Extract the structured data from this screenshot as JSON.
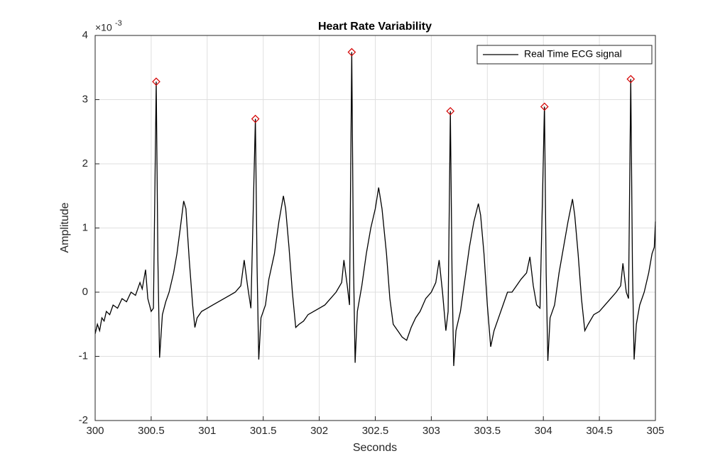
{
  "chart_data": {
    "type": "line",
    "title": "Heart Rate Variability",
    "xlabel": "Seconds",
    "ylabel": "Amplitude",
    "y_scale_base": "×10",
    "y_scale_power": "-3",
    "xlim": [
      300,
      305
    ],
    "xticks": [
      300,
      300.5,
      301,
      301.5,
      302,
      302.5,
      303,
      303.5,
      304,
      304.5,
      305
    ],
    "ylim": [
      -2,
      4
    ],
    "yticks": [
      -2,
      -1,
      0,
      1,
      2,
      3,
      4
    ],
    "grid": true,
    "legend": "northeast",
    "x": [
      300.0,
      300.02,
      300.04,
      300.06,
      300.08,
      300.1,
      300.13,
      300.16,
      300.2,
      300.24,
      300.28,
      300.32,
      300.36,
      300.4,
      300.42,
      300.45,
      300.47,
      300.5,
      300.52,
      300.545,
      300.56,
      300.575,
      300.6,
      300.63,
      300.66,
      300.7,
      300.73,
      300.76,
      300.79,
      300.81,
      300.84,
      300.87,
      300.89,
      300.91,
      300.95,
      301.0,
      301.05,
      301.1,
      301.15,
      301.2,
      301.25,
      301.3,
      301.33,
      301.36,
      301.39,
      301.43,
      301.445,
      301.46,
      301.48,
      301.52,
      301.55,
      301.6,
      301.64,
      301.68,
      301.7,
      301.73,
      301.76,
      301.79,
      301.82,
      301.86,
      301.9,
      301.95,
      302.0,
      302.05,
      302.1,
      302.15,
      302.2,
      302.22,
      302.25,
      302.27,
      302.29,
      302.305,
      302.32,
      302.34,
      302.38,
      302.42,
      302.46,
      302.5,
      302.53,
      302.56,
      302.6,
      302.63,
      302.66,
      302.7,
      302.74,
      302.78,
      302.82,
      302.86,
      302.9,
      302.95,
      303.0,
      303.04,
      303.07,
      303.1,
      303.13,
      303.15,
      303.17,
      303.185,
      303.2,
      303.22,
      303.26,
      303.3,
      303.34,
      303.38,
      303.42,
      303.44,
      303.47,
      303.5,
      303.53,
      303.56,
      303.6,
      303.64,
      303.68,
      303.72,
      303.76,
      303.8,
      303.85,
      303.88,
      303.91,
      303.94,
      303.97,
      304.01,
      304.025,
      304.04,
      304.06,
      304.1,
      304.14,
      304.18,
      304.22,
      304.26,
      304.28,
      304.31,
      304.34,
      304.37,
      304.4,
      304.45,
      304.5,
      304.55,
      304.6,
      304.65,
      304.69,
      304.71,
      304.74,
      304.76,
      304.78,
      304.795,
      304.81,
      304.83,
      304.86,
      304.9,
      304.94,
      304.97,
      304.99,
      305.0
    ],
    "series": [
      {
        "name": "Real Time ECG signal",
        "color": "#000000",
        "values": [
          -0.65,
          -0.5,
          -0.6,
          -0.4,
          -0.45,
          -0.3,
          -0.35,
          -0.2,
          -0.25,
          -0.1,
          -0.15,
          0.0,
          -0.05,
          0.15,
          0.05,
          0.35,
          -0.1,
          -0.3,
          -0.25,
          3.28,
          0.5,
          -1.02,
          -0.35,
          -0.15,
          0.0,
          0.3,
          0.6,
          1.0,
          1.42,
          1.3,
          0.5,
          -0.2,
          -0.55,
          -0.4,
          -0.3,
          -0.25,
          -0.2,
          -0.15,
          -0.1,
          -0.05,
          0.0,
          0.1,
          0.5,
          0.1,
          -0.25,
          2.7,
          0.4,
          -1.05,
          -0.4,
          -0.2,
          0.2,
          0.6,
          1.1,
          1.5,
          1.3,
          0.7,
          0.0,
          -0.55,
          -0.5,
          -0.45,
          -0.35,
          -0.3,
          -0.25,
          -0.2,
          -0.1,
          0.0,
          0.15,
          0.5,
          0.1,
          -0.2,
          3.74,
          0.5,
          -1.1,
          -0.3,
          0.1,
          0.6,
          1.0,
          1.3,
          1.63,
          1.3,
          0.6,
          -0.1,
          -0.5,
          -0.6,
          -0.7,
          -0.75,
          -0.55,
          -0.4,
          -0.3,
          -0.1,
          0.0,
          0.15,
          0.5,
          0.0,
          -0.6,
          -0.3,
          2.82,
          0.3,
          -1.15,
          -0.6,
          -0.3,
          0.2,
          0.7,
          1.1,
          1.38,
          1.2,
          0.6,
          -0.2,
          -0.85,
          -0.6,
          -0.4,
          -0.2,
          0.0,
          0.0,
          0.1,
          0.2,
          0.3,
          0.55,
          0.1,
          -0.2,
          -0.25,
          2.89,
          0.3,
          -1.07,
          -0.4,
          -0.2,
          0.3,
          0.7,
          1.1,
          1.45,
          1.2,
          0.6,
          -0.1,
          -0.6,
          -0.5,
          -0.35,
          -0.3,
          -0.2,
          -0.1,
          0.0,
          0.1,
          0.45,
          0.0,
          -0.1,
          3.32,
          0.4,
          -1.05,
          -0.5,
          -0.2,
          0.0,
          0.3,
          0.6,
          0.7,
          1.1
        ]
      }
    ],
    "markers": {
      "color": "#d40000",
      "x": [
        300.545,
        301.43,
        302.29,
        303.17,
        304.01,
        304.78
      ],
      "values": [
        3.28,
        2.7,
        3.74,
        2.82,
        2.89,
        3.32
      ]
    }
  }
}
